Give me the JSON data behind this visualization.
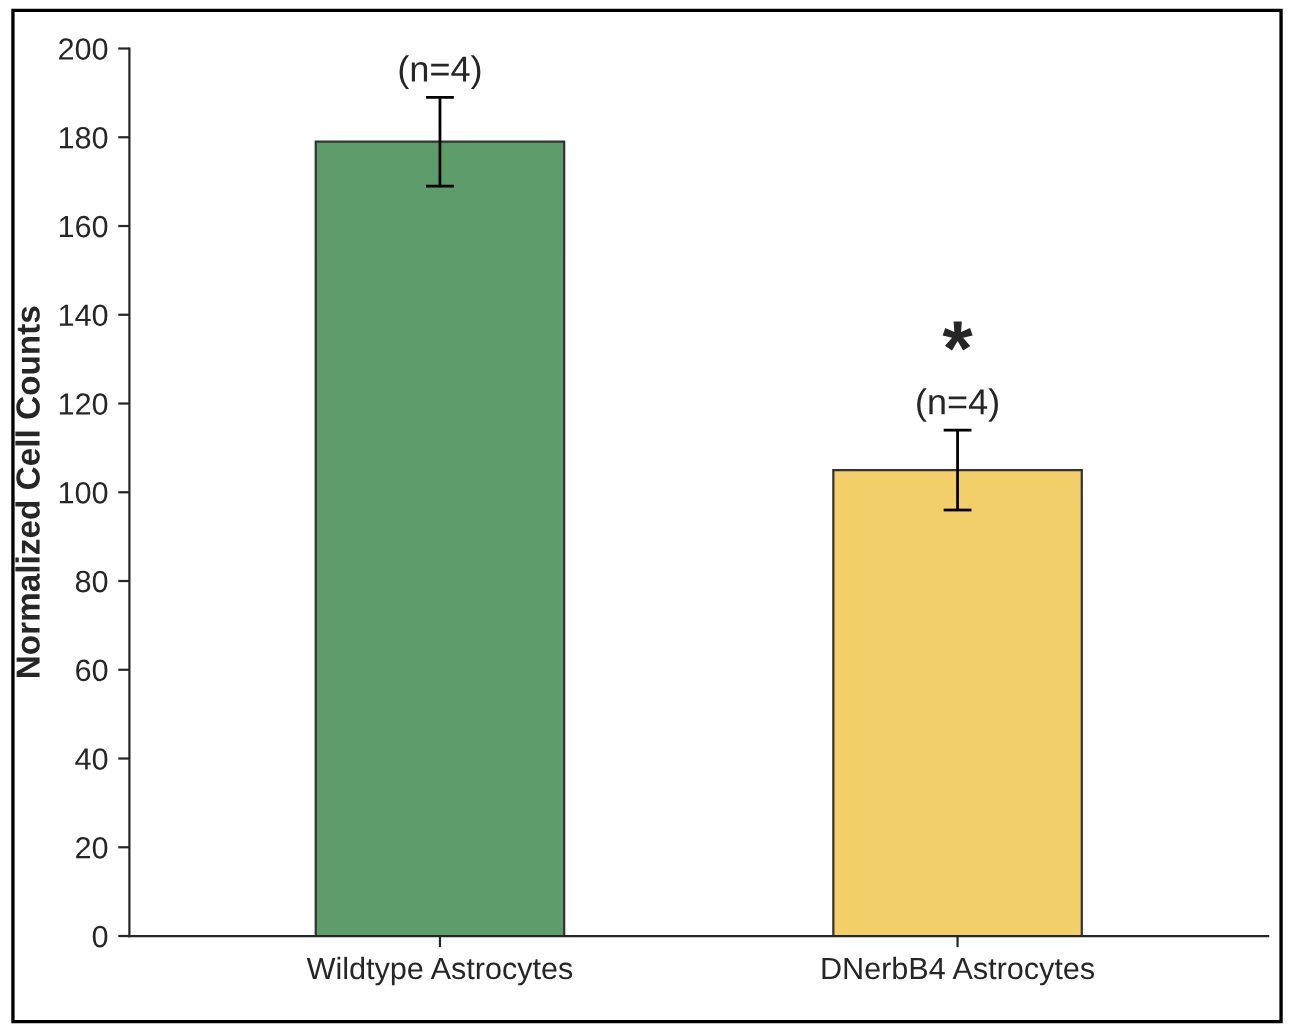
{
  "chart_data": {
    "type": "bar",
    "ylabel": "Normalized Cell Counts",
    "categories": [
      "Wildtype Astrocytes",
      "DNerbB4 Astrocytes"
    ],
    "values": [
      179,
      105
    ],
    "errors": [
      10,
      9
    ],
    "colors": [
      "#5e9c6c",
      "#f3cf6a"
    ],
    "ylim": [
      0,
      200
    ],
    "yticks": [
      0,
      20,
      40,
      60,
      80,
      100,
      120,
      140,
      160,
      180,
      200
    ],
    "grid": false,
    "annotations": [
      {
        "text": "(n=4)",
        "x": "Wildtype Astrocytes",
        "y": 189
      },
      {
        "text": "(n=4)",
        "x": "DNerbB4 Astrocytes",
        "y": 114
      },
      "*"
    ]
  }
}
